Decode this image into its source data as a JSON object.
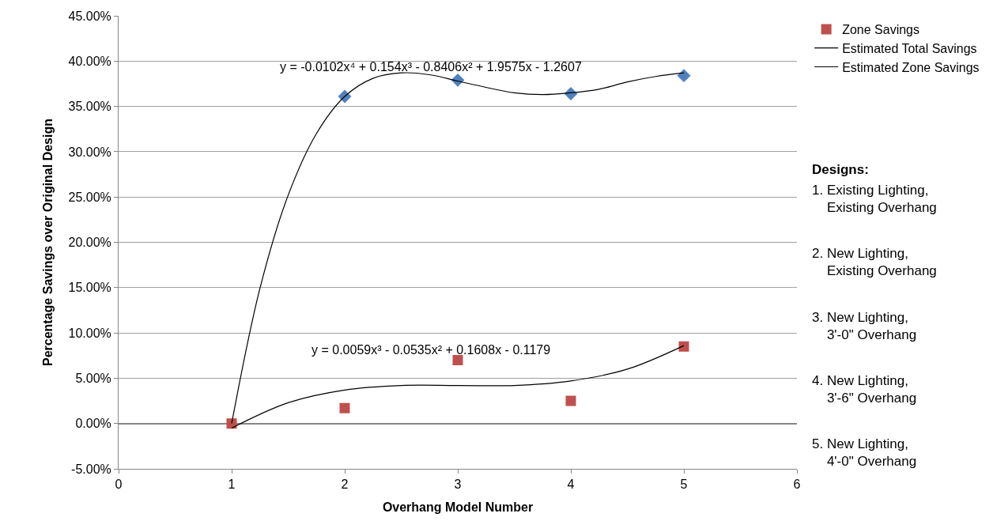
{
  "chart_data": {
    "type": "scatter",
    "xlabel": "Overhang Model Number",
    "ylabel": "Percentage Savings over Original Design",
    "xlim": [
      0,
      6
    ],
    "xticks": [
      0,
      1,
      2,
      3,
      4,
      5,
      6
    ],
    "ylim": [
      -5,
      45
    ],
    "yticks": [
      {
        "value": -5,
        "label": "-5.00%"
      },
      {
        "value": 0,
        "label": "0.00%"
      },
      {
        "value": 5,
        "label": "5.00%"
      },
      {
        "value": 10,
        "label": "10.00%"
      },
      {
        "value": 15,
        "label": "15.00%"
      },
      {
        "value": 20,
        "label": "20.00%"
      },
      {
        "value": 25,
        "label": "25.00%"
      },
      {
        "value": 30,
        "label": "30.00%"
      },
      {
        "value": 35,
        "label": "35.00%"
      },
      {
        "value": 40,
        "label": "40.00%"
      },
      {
        "value": 45,
        "label": "45.00%"
      }
    ],
    "grid": "y",
    "legend": "right",
    "series": [
      {
        "color": "#4f81bd",
        "marker": "diamond",
        "x": [
          2,
          3,
          4,
          5
        ],
        "values": [
          36.1,
          37.9,
          36.4,
          38.4
        ]
      },
      {
        "name": "Zone Savings",
        "color": "#c0504d",
        "marker": "square",
        "x": [
          1,
          2,
          3,
          4,
          5
        ],
        "values": [
          0,
          1.7,
          7.0,
          2.5,
          8.5
        ]
      },
      {
        "type": "line",
        "name": "Estimated Total Savings",
        "color": "#000000",
        "marker": "none",
        "line_style": "solid",
        "x": [
          1,
          1.25,
          1.5,
          1.75,
          2,
          2.25,
          2.5,
          2.75,
          3,
          3.25,
          3.5,
          3.75,
          4,
          4.25,
          4.5,
          4.75,
          5
        ],
        "values": [
          0,
          14.9,
          25.2,
          32.0,
          36.1,
          38.1,
          38.7,
          38.5,
          37.8,
          37.1,
          36.5,
          36.3,
          36.5,
          36.9,
          37.7,
          38.3,
          38.7
        ]
      },
      {
        "type": "line",
        "name": "Estimated Zone Savings",
        "color": "#000000",
        "marker": "none",
        "line_style": "solid",
        "x": [
          1,
          1.5,
          2,
          2.5,
          3,
          3.5,
          4,
          4.5,
          5
        ],
        "values": [
          -0.5,
          2.3,
          3.7,
          4.2,
          4.2,
          4.2,
          4.7,
          6.0,
          8.6
        ]
      }
    ],
    "annotations": [
      "y = -0.0102x⁴ + 0.154x³ - 0.8406x² + 1.9575x - 1.2607",
      "y = 0.0059x³ - 0.0535x² + 0.1608x - 0.1179",
      "Designs:",
      "1. Existing Lighting,\n    Existing Overhang",
      "2. New Lighting,\n    Existing Overhang",
      "3. New Lighting,\n    3'-0\" Overhang",
      "4. New Lighting,\n    3'-6\" Overhang",
      "5. New Lighting,\n    4'-0\" Overhang"
    ]
  }
}
